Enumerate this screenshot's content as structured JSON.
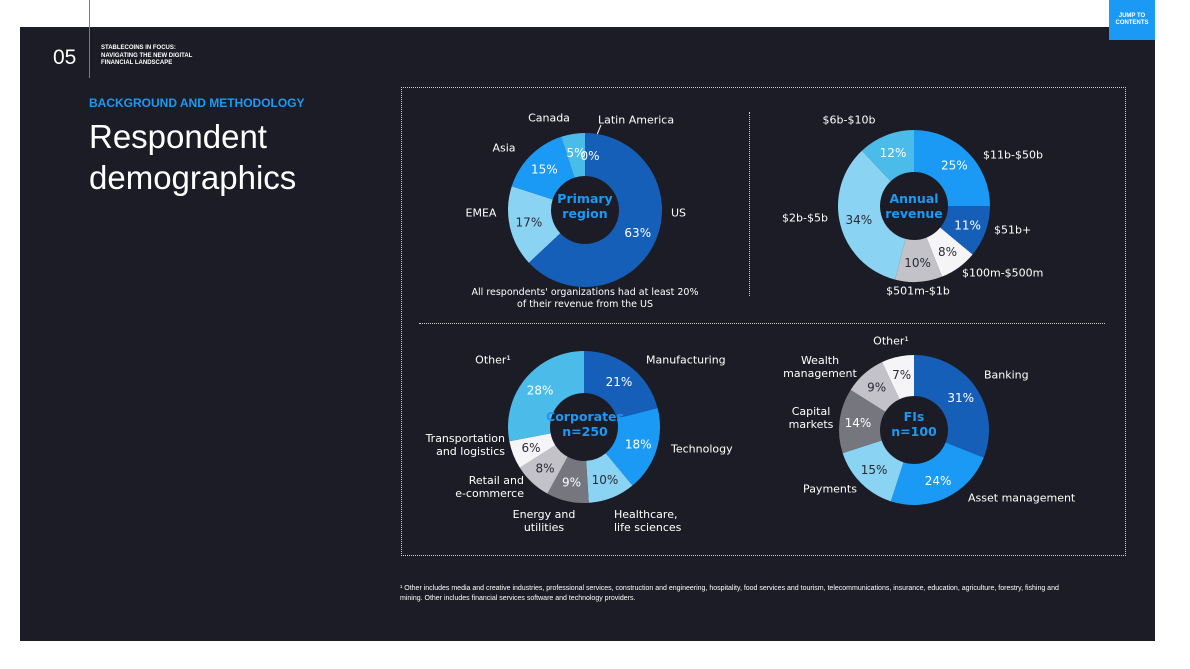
{
  "header": {
    "page_number": "05",
    "doc_title_lines": [
      "STABLECOINS IN FOCUS:",
      "NAVIGATING THE NEW DIGITAL",
      "FINANCIAL LANDSCAPE"
    ],
    "jump_label_lines": [
      "JUMP TO",
      "CONTENTS"
    ]
  },
  "section_label": "BACKGROUND AND METHODOLOGY",
  "page_title_lines": [
    "Respondent",
    "demographics"
  ],
  "chart_data": [
    {
      "type": "pie",
      "donut": true,
      "title": "Primary region",
      "title_lines": [
        "Primary",
        "region"
      ],
      "note_lines": [
        "All respondents' organizations had at least 20%",
        "of their revenue from the US"
      ],
      "slices": [
        {
          "label": "US",
          "value": 63,
          "display": "63%",
          "color": "#155fb8",
          "text": "#ffffff"
        },
        {
          "label": "EMEA",
          "value": 17,
          "display": "17%",
          "color": "#8ad3f3",
          "text": "#2a2a35"
        },
        {
          "label": "Asia",
          "value": 15,
          "display": "15%",
          "color": "#1a9af5",
          "text": "#ffffff"
        },
        {
          "label": "Canada",
          "value": 5,
          "display": "5%",
          "color": "#4bbce9",
          "text": "#ffffff"
        },
        {
          "label": "Latin America",
          "value": 0,
          "display": "0%",
          "color": "#ffffff",
          "text": "#ffffff"
        }
      ]
    },
    {
      "type": "pie",
      "donut": true,
      "title": "Annual revenue",
      "title_lines": [
        "Annual",
        "revenue"
      ],
      "slices": [
        {
          "label": "$11b-$50b",
          "value": 25,
          "display": "25%",
          "color": "#1a9af5",
          "text": "#ffffff"
        },
        {
          "label": "$51b+",
          "value": 11,
          "display": "11%",
          "color": "#155fb8",
          "text": "#ffffff"
        },
        {
          "label": "$100m-$500m",
          "value": 8,
          "display": "8%",
          "color": "#f5f5f8",
          "text": "#2a2a35"
        },
        {
          "label": "$501m-$1b",
          "value": 10,
          "display": "10%",
          "color": "#c2c2c8",
          "text": "#2a2a35"
        },
        {
          "label": "$2b-$5b",
          "value": 34,
          "display": "34%",
          "color": "#8ad3f3",
          "text": "#2a2a35"
        },
        {
          "label": "$6b-$10b",
          "value": 12,
          "display": "12%",
          "color": "#4bbce9",
          "text": "#ffffff"
        }
      ]
    },
    {
      "type": "pie",
      "donut": true,
      "title": "Corporates n=250",
      "title_lines": [
        "Corporates",
        "n=250"
      ],
      "slices": [
        {
          "label": "Manufacturing",
          "value": 21,
          "display": "21%",
          "color": "#155fb8",
          "text": "#ffffff"
        },
        {
          "label": "Technology",
          "value": 18,
          "display": "18%",
          "color": "#1a9af5",
          "text": "#ffffff"
        },
        {
          "label": "Healthcare, life sciences",
          "lines": [
            "Healthcare,",
            "life sciences"
          ],
          "value": 10,
          "display": "10%",
          "color": "#8ad3f3",
          "text": "#2a2a35"
        },
        {
          "label": "Energy and utilities",
          "lines": [
            "Energy and",
            "utilities"
          ],
          "value": 9,
          "display": "9%",
          "color": "#76767e",
          "text": "#ffffff"
        },
        {
          "label": "Retail and e-commerce",
          "lines": [
            "Retail and",
            "e-commerce"
          ],
          "value": 8,
          "display": "8%",
          "color": "#c2c2c8",
          "text": "#2a2a35"
        },
        {
          "label": "Transportation and logistics",
          "lines": [
            "Transportation",
            "and logistics"
          ],
          "value": 6,
          "display": "6%",
          "color": "#f5f5f8",
          "text": "#2a2a35"
        },
        {
          "label": "Other¹",
          "value": 28,
          "display": "28%",
          "color": "#4bbce9",
          "text": "#ffffff"
        }
      ]
    },
    {
      "type": "pie",
      "donut": true,
      "title": "FIs n=100",
      "title_lines": [
        "FIs",
        "n=100"
      ],
      "slices": [
        {
          "label": "Banking",
          "value": 31,
          "display": "31%",
          "color": "#155fb8",
          "text": "#ffffff"
        },
        {
          "label": "Asset management",
          "value": 24,
          "display": "24%",
          "color": "#1a9af5",
          "text": "#ffffff"
        },
        {
          "label": "Payments",
          "value": 15,
          "display": "15%",
          "color": "#8ad3f3",
          "text": "#2a2a35"
        },
        {
          "label": "Capital markets",
          "lines": [
            "Capital",
            "markets"
          ],
          "value": 14,
          "display": "14%",
          "color": "#76767e",
          "text": "#ffffff"
        },
        {
          "label": "Wealth management",
          "lines": [
            "Wealth",
            "management"
          ],
          "value": 9,
          "display": "9%",
          "color": "#c2c2c8",
          "text": "#2a2a35"
        },
        {
          "label": "Other¹",
          "value": 7,
          "display": "7%",
          "color": "#f5f5f8",
          "text": "#2a2a35"
        }
      ]
    }
  ],
  "footnote_lines": [
    "¹ Other includes media and creative industries, professional services, construction and engineering, hospitality, food services and tourism, telecommunications, insurance, education, agriculture, forestry, fishing and",
    "mining. Other includes financial services software and technology providers."
  ]
}
